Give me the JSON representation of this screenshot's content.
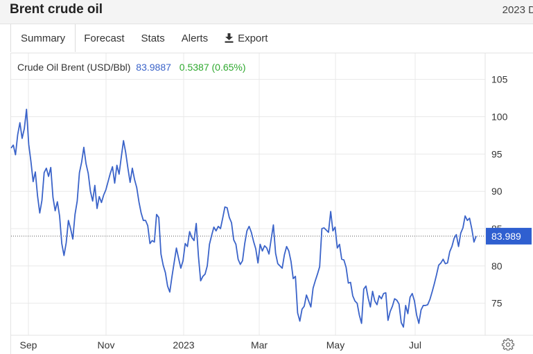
{
  "header": {
    "title": "Brent crude oil",
    "date_fragment": "2023 D"
  },
  "tabs": [
    {
      "label": "Summary",
      "active": true
    },
    {
      "label": "Forecast",
      "active": false
    },
    {
      "label": "Stats",
      "active": false
    },
    {
      "label": "Alerts",
      "active": false
    },
    {
      "label": "Export",
      "active": false,
      "icon": "download-icon"
    }
  ],
  "settings_icon": "gear-icon",
  "colors": {
    "line": "#3a63c9",
    "value": "#3a63c9",
    "change": "#2ea82e",
    "grid": "#e8e8e8",
    "price_tag": "#2f5fd0"
  },
  "chart_data": {
    "type": "line",
    "series": [
      {
        "name": "Crude Oil Brent (USD/Bbl)",
        "last_value": "83.9887",
        "change": "0.5387 (0.65%)",
        "price_tag": "83.989",
        "values": [
          95.8,
          96.2,
          94.9,
          97.6,
          99.2,
          97.1,
          98.4,
          101.0,
          96.3,
          94.0,
          91.3,
          92.6,
          89.4,
          87.1,
          88.8,
          92.5,
          93.1,
          92.0,
          93.2,
          89.2,
          87.4,
          88.6,
          86.7,
          83.0,
          81.4,
          83.1,
          86.1,
          85.0,
          83.6,
          86.9,
          88.7,
          92.5,
          93.9,
          95.9,
          93.7,
          92.4,
          90.0,
          88.7,
          90.8,
          87.7,
          89.3,
          88.5,
          89.5,
          90.2,
          91.3,
          92.4,
          93.3,
          91.1,
          93.5,
          92.3,
          94.6,
          96.8,
          95.2,
          93.1,
          91.2,
          93.1,
          91.6,
          90.5,
          88.6,
          87.1,
          86.1,
          86.1,
          85.4,
          83.0,
          83.4,
          83.2,
          86.9,
          86.5,
          81.6,
          80.1,
          79.1,
          77.3,
          76.5,
          78.6,
          80.5,
          82.4,
          81.0,
          79.7,
          80.7,
          83.0,
          82.6,
          84.6,
          83.8,
          83.4,
          85.7,
          81.3,
          78.0,
          78.6,
          78.9,
          80.0,
          82.9,
          84.1,
          85.2,
          84.7,
          85.3,
          85.0,
          86.4,
          87.9,
          87.8,
          86.5,
          85.8,
          83.5,
          82.9,
          80.9,
          80.2,
          80.7,
          83.0,
          84.7,
          85.3,
          84.5,
          83.3,
          82.3,
          80.4,
          82.9,
          82.0,
          82.7,
          82.4,
          81.6,
          83.6,
          85.5,
          81.7,
          80.3,
          80.0,
          79.7,
          81.5,
          82.6,
          82.0,
          80.6,
          78.3,
          78.6,
          73.7,
          72.6,
          74.2,
          74.6,
          76.1,
          75.3,
          74.5,
          77.0,
          78.0,
          78.9,
          79.9,
          85.0,
          85.1,
          84.8,
          84.5,
          87.3,
          84.7,
          85.2,
          82.4,
          82.9,
          80.9,
          80.8,
          79.8,
          77.7,
          77.8,
          76.0,
          75.3,
          75.0,
          73.4,
          72.3,
          76.9,
          77.3,
          75.7,
          74.5,
          76.6,
          75.3,
          74.8,
          76.0,
          75.6,
          76.3,
          76.4,
          72.7,
          73.9,
          74.6,
          75.6,
          75.4,
          74.9,
          72.4,
          71.8,
          74.7,
          73.6,
          75.8,
          76.3,
          75.3,
          73.4,
          72.3,
          74.1,
          74.7,
          74.7,
          74.8,
          75.5,
          76.5,
          77.6,
          78.8,
          80.1,
          80.4,
          80.9,
          80.3,
          80.4,
          81.9,
          82.6,
          83.7,
          84.2,
          82.6,
          84.4,
          85.1,
          86.7,
          86.1,
          86.4,
          85.0,
          83.2,
          83.99
        ]
      }
    ],
    "x_tick_labels": [
      "Sep",
      "Nov",
      "2023",
      "Mar",
      "May",
      "Jul"
    ],
    "y_tick_labels": [
      "105",
      "100",
      "95",
      "90",
      "85",
      "80",
      "75"
    ],
    "y_ticks": [
      105,
      100,
      95,
      90,
      85,
      80,
      75
    ],
    "ylim": [
      70.7,
      108.5
    ],
    "grid": true,
    "current_value_line": true
  }
}
